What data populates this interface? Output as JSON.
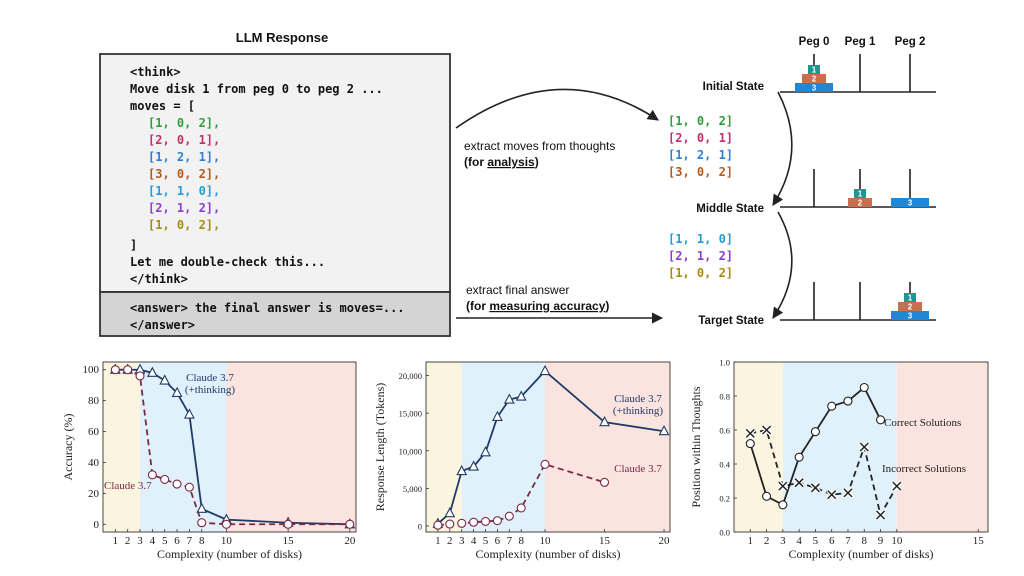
{
  "colors": {
    "green": "#2e9e3a",
    "magenta": "#c0306a",
    "blue": "#2f7fd0",
    "brown": "#b35a1f",
    "cyan": "#1f9fd6",
    "purple": "#8a3fd1",
    "olive": "#a88a12",
    "disk1": "#1a9a8c",
    "disk2": "#c86f4e",
    "disk3": "#1e87d6",
    "bandYellow": "#fbf5e0",
    "bandBlue": "#e1f1fb",
    "bandRed": "#fbe4e0",
    "thinking": "#1f3b66",
    "nonthinking": "#7a2846"
  },
  "top": {
    "title": "LLM Response",
    "think_open": "<think>",
    "line_move": "Move disk 1 from peg 0 to peg 2 ...",
    "moves_open": "moves = [",
    "moves": [
      {
        "text": "[1, 0, 2],",
        "color": "green"
      },
      {
        "text": "[2, 0, 1],",
        "color": "magenta"
      },
      {
        "text": "[1, 2, 1],",
        "color": "blue"
      },
      {
        "text": "[3, 0, 2],",
        "color": "brown"
      },
      {
        "text": "[1, 1, 0],",
        "color": "cyan"
      },
      {
        "text": "[2, 1, 2],",
        "color": "purple"
      },
      {
        "text": "[1, 0, 2],",
        "color": "olive"
      }
    ],
    "moves_close": "]",
    "line_check": "Let me double-check this...",
    "think_close": "</think>",
    "answer_line1": "<answer> the final answer is moves=...",
    "answer_line2": "</answer>",
    "extract1_line1": "extract moves  from thoughts",
    "extract1_pre": "(for ",
    "extract1_u": "analysis",
    "extract1_post": ")",
    "extract2_line1": "extract final answer",
    "extract2_pre": "(for ",
    "extract2_u": "measuring accuracy",
    "extract2_post": ")",
    "moves_group1": [
      {
        "text": "[1, 0, 2]",
        "color": "green"
      },
      {
        "text": "[2, 0, 1]",
        "color": "magenta"
      },
      {
        "text": "[1, 2, 1]",
        "color": "blue"
      },
      {
        "text": "[3, 0, 2]",
        "color": "brown"
      }
    ],
    "moves_group2": [
      {
        "text": "[1, 1, 0]",
        "color": "cyan"
      },
      {
        "text": "[2, 1, 2]",
        "color": "purple"
      },
      {
        "text": "[1, 0, 2]",
        "color": "olive"
      }
    ],
    "peg_labels": [
      "Peg 0",
      "Peg 1",
      "Peg 2"
    ],
    "states": [
      "Initial State",
      "Middle State",
      "Target State"
    ],
    "disk_labels": [
      "1",
      "2",
      "3"
    ]
  },
  "chart_data": [
    {
      "type": "line",
      "ylabel": "Accuracy (%)",
      "xlabel": "Complexity (number of disks)",
      "xlim": [
        0,
        20.5
      ],
      "ylim": [
        -5,
        105
      ],
      "xticks": [
        1,
        2,
        3,
        4,
        5,
        6,
        7,
        8,
        10,
        15,
        20
      ],
      "yticks": [
        0,
        20,
        40,
        60,
        80,
        100
      ],
      "bands": [
        [
          0,
          3,
          "yellow"
        ],
        [
          3,
          10,
          "blue"
        ],
        [
          10,
          20.5,
          "red"
        ]
      ],
      "series": [
        {
          "name": "Claude 3.7 (+thinking)",
          "label_lines": [
            "Claude 3.7",
            "(+thinking)"
          ],
          "marker": "triangle",
          "style": "solid",
          "x": [
            1,
            2,
            3,
            4,
            5,
            6,
            7,
            8,
            10,
            15,
            20
          ],
          "y": [
            100,
            100,
            100,
            98,
            93,
            85,
            71,
            10,
            3,
            1,
            0
          ]
        },
        {
          "name": "Claude 3.7",
          "label_lines": [
            "Claude 3.7"
          ],
          "marker": "circle",
          "style": "dashed",
          "x": [
            1,
            2,
            3,
            4,
            5,
            6,
            7,
            8,
            10,
            15,
            20
          ],
          "y": [
            100,
            100,
            96,
            32,
            29,
            26,
            24,
            1,
            0,
            0,
            0
          ]
        }
      ]
    },
    {
      "type": "line",
      "ylabel": "Response Length (Tokens)",
      "xlabel": "Complexity (number of disks)",
      "xlim": [
        0,
        20.5
      ],
      "ylim": [
        -800,
        21800
      ],
      "xticks": [
        1,
        2,
        3,
        4,
        5,
        6,
        7,
        8,
        10,
        15,
        20
      ],
      "yticks": [
        0,
        5000,
        10000,
        15000,
        20000
      ],
      "ytick_labels": [
        "0",
        "5,000",
        "10,000",
        "15,000",
        "20,000"
      ],
      "bands": [
        [
          0,
          3,
          "yellow"
        ],
        [
          3,
          10,
          "blue"
        ],
        [
          10,
          20.5,
          "red"
        ]
      ],
      "series": [
        {
          "name": "Claude 3.7 (+thinking)",
          "label_lines": [
            "Claude 3.7",
            "(+thinking)"
          ],
          "marker": "triangle",
          "style": "solid",
          "x": [
            1,
            2,
            3,
            4,
            5,
            6,
            7,
            8,
            10,
            15,
            20
          ],
          "y": [
            300,
            1700,
            7300,
            7900,
            9800,
            14500,
            16800,
            17200,
            20600,
            13800,
            12600
          ]
        },
        {
          "name": "Claude 3.7",
          "label_lines": [
            "Claude 3.7"
          ],
          "marker": "circle",
          "style": "dashed",
          "x": [
            1,
            2,
            3,
            4,
            5,
            6,
            7,
            8,
            10,
            15
          ],
          "y": [
            100,
            250,
            350,
            500,
            600,
            700,
            1300,
            2400,
            8200,
            5800
          ]
        }
      ]
    },
    {
      "type": "line",
      "ylabel": "Position within Thoughts",
      "xlabel": "Complexity (number of disks)",
      "xlim": [
        0,
        15.6
      ],
      "ylim": [
        0,
        1.0
      ],
      "xticks": [
        1,
        2,
        3,
        4,
        5,
        6,
        7,
        8,
        9,
        10,
        15
      ],
      "yticks": [
        0.0,
        0.2,
        0.4,
        0.6,
        0.8,
        1.0
      ],
      "ytick_labels": [
        "0.0",
        "0.2",
        "0.4",
        "0.6",
        "0.8",
        "1.0"
      ],
      "bands": [
        [
          0,
          3,
          "yellow"
        ],
        [
          3,
          10,
          "blue"
        ],
        [
          10,
          15.6,
          "red"
        ]
      ],
      "series": [
        {
          "name": "Correct Solutions",
          "label_lines": [
            "Correct Solutions"
          ],
          "marker": "circle",
          "style": "solid",
          "x": [
            1,
            2,
            3,
            4,
            5,
            6,
            7,
            8,
            9
          ],
          "y": [
            0.52,
            0.21,
            0.16,
            0.44,
            0.59,
            0.74,
            0.77,
            0.85,
            0.66
          ]
        },
        {
          "name": "Incorrect Solutions",
          "label_lines": [
            "Incorrect Solutions"
          ],
          "marker": "cross",
          "style": "dashed",
          "x": [
            1,
            2,
            3,
            4,
            5,
            6,
            7,
            8,
            9,
            10
          ],
          "y": [
            0.58,
            0.6,
            0.27,
            0.29,
            0.26,
            0.22,
            0.23,
            0.5,
            0.1,
            0.27
          ]
        }
      ]
    }
  ]
}
